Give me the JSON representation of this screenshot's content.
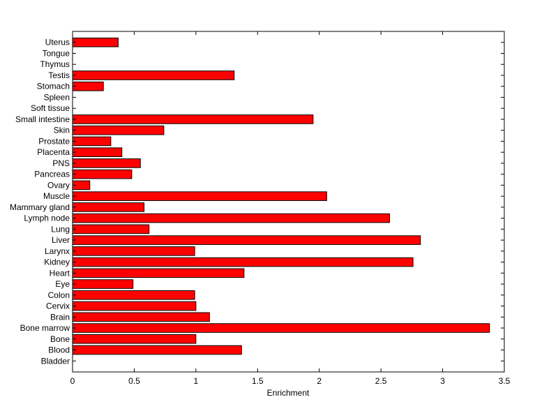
{
  "chart_data": {
    "type": "bar",
    "orientation": "horizontal",
    "categories": [
      "Bladder",
      "Blood",
      "Bone",
      "Bone marrow",
      "Brain",
      "Cervix",
      "Colon",
      "Eye",
      "Heart",
      "Kidney",
      "Larynx",
      "Liver",
      "Lung",
      "Lymph node",
      "Mammary gland",
      "Muscle",
      "Ovary",
      "Pancreas",
      "PNS",
      "Placenta",
      "Prostate",
      "Skin",
      "Small intestine",
      "Soft tissue",
      "Spleen",
      "Stomach",
      "Testis",
      "Thymus",
      "Tongue",
      "Uterus"
    ],
    "values": [
      0,
      1.37,
      1.0,
      3.38,
      1.11,
      1.0,
      0.99,
      0.49,
      1.39,
      2.76,
      0.99,
      2.82,
      0.62,
      2.57,
      0.58,
      2.06,
      0.14,
      0.48,
      0.55,
      0.4,
      0.31,
      0.74,
      1.95,
      0,
      0,
      0.25,
      1.31,
      0,
      0,
      0.37
    ],
    "title": "",
    "xlabel": "Enrichment",
    "ylabel": "",
    "xlim": [
      0,
      3.5
    ],
    "xticks": [
      "0",
      "0.5",
      "1",
      "1.5",
      "2",
      "2.5",
      "3",
      "3.5"
    ],
    "bar_color": "#ff0000",
    "edge_color": "#000000",
    "grid": false,
    "legend": "none"
  }
}
